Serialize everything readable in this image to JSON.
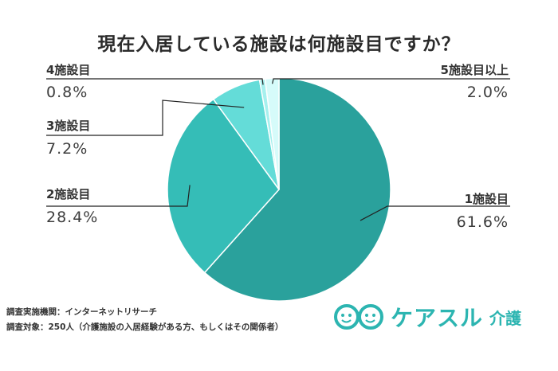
{
  "title": "現在入居している施設は何施設目ですか？",
  "chart_data": {
    "type": "pie",
    "title": "現在入居している施設は何施設目ですか？",
    "slices": [
      {
        "label": "1施設目",
        "value": 61.6,
        "value_label": "61.6%",
        "color": "#2aa19c"
      },
      {
        "label": "2施設目",
        "value": 28.4,
        "value_label": "28.4%",
        "color": "#35bdb7"
      },
      {
        "label": "3施設目",
        "value": 7.2,
        "value_label": "7.2%",
        "color": "#64dcd8"
      },
      {
        "label": "4施設目",
        "value": 0.8,
        "value_label": "0.8%",
        "color": "#a6f0ee"
      },
      {
        "label": "5施設目以上",
        "value": 2.0,
        "value_label": "2.0%",
        "color": "#d6fbfa"
      }
    ],
    "start_angle_deg": 0,
    "direction": "clockwise"
  },
  "footer": {
    "line1": "調査実施機関：インターネットリサーチ",
    "line2": "調査対象：250人（介護施設の入居経験がある方、もしくはその関係者）"
  },
  "brand": {
    "name": "ケアスル",
    "sub": "介護",
    "color": "#2cb5b1",
    "icon": "smile-faces-logo-icon"
  }
}
